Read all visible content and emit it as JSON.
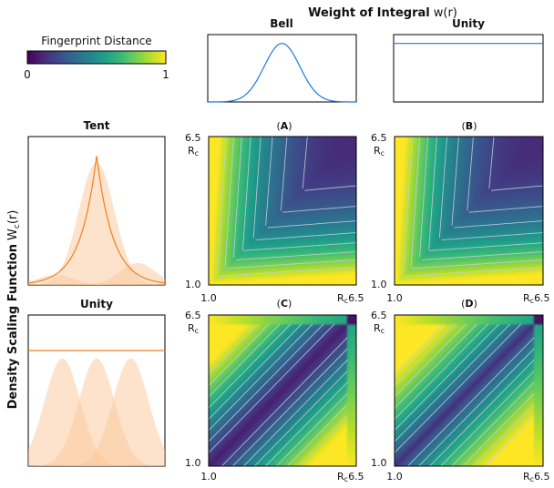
{
  "figure": {
    "top_title_bold": "Weight of Integral",
    "top_title_fn": "w(r)",
    "side_title_bold": "Density Scaling Function",
    "side_title_fn": "W",
    "side_title_sub": "c",
    "side_title_arg": "(r)"
  },
  "colorbar": {
    "title": "Fingerprint Distance",
    "min_label": "0",
    "max_label": "1",
    "colormap": "viridis",
    "stops": [
      "#440154",
      "#482878",
      "#3e4989",
      "#31688e",
      "#26828e",
      "#1f9e89",
      "#35b779",
      "#6ece58",
      "#b5de2b",
      "#fde725"
    ]
  },
  "colors": {
    "weight_line": "#1f77e0",
    "density_line": "#f07f1f",
    "density_fill": "#fcc79a",
    "contour": "#c8cfe0"
  },
  "chart_data": [
    {
      "type": "line",
      "title": "Bell",
      "role": "weight",
      "shape": "gaussian",
      "mean": 0.5,
      "sigma": 0.12,
      "ylim": [
        0,
        1.15
      ],
      "x": [
        0,
        0.1,
        0.2,
        0.3,
        0.4,
        0.5,
        0.6,
        0.7,
        0.8,
        0.9,
        1.0
      ],
      "y": [
        0.0,
        0.06,
        0.21,
        0.5,
        0.87,
        1.0,
        0.87,
        0.5,
        0.21,
        0.06,
        0.0
      ]
    },
    {
      "type": "line",
      "title": "Unity",
      "role": "weight",
      "shape": "constant",
      "value": 1.0,
      "ylim": [
        0,
        1.15
      ],
      "x": [
        0,
        1
      ],
      "y": [
        1,
        1
      ]
    },
    {
      "type": "area",
      "title": "Tent",
      "role": "density",
      "shape": "tent",
      "gaussians": [
        {
          "mean": 0.2,
          "sigma": 0.13,
          "amp": 0.08
        },
        {
          "mean": 0.5,
          "sigma": 0.13,
          "amp": 0.95
        },
        {
          "mean": 0.8,
          "sigma": 0.13,
          "amp": 0.17
        }
      ],
      "line_peak": 0.5,
      "line_height": 1.0,
      "line_decay": 0.12,
      "ylim": [
        0,
        1.15
      ]
    },
    {
      "type": "area",
      "title": "Unity",
      "role": "density",
      "shape": "constant",
      "gaussians": [
        {
          "mean": 0.25,
          "sigma": 0.13,
          "amp": 0.82
        },
        {
          "mean": 0.5,
          "sigma": 0.13,
          "amp": 0.82
        },
        {
          "mean": 0.75,
          "sigma": 0.13,
          "amp": 0.82
        }
      ],
      "line_value": 0.88,
      "ylim": [
        0,
        1.15
      ]
    },
    {
      "type": "heatmap",
      "label": "A",
      "xlim": [
        1.0,
        6.5
      ],
      "ylim": [
        1.0,
        6.5
      ],
      "variant": "smooth",
      "x_tick_min": "1.0",
      "x_tick_max": "6.5",
      "y_tick_min": "1.0",
      "y_tick_max": "6.5",
      "axis_symbol": "R",
      "axis_sub": "c"
    },
    {
      "type": "heatmap",
      "label": "B",
      "xlim": [
        1.0,
        6.5
      ],
      "ylim": [
        1.0,
        6.5
      ],
      "variant": "smooth",
      "x_tick_min": "1.0",
      "x_tick_max": "6.5",
      "y_tick_min": "1.0",
      "y_tick_max": "6.5",
      "axis_symbol": "R",
      "axis_sub": "c"
    },
    {
      "type": "heatmap",
      "label": "C",
      "xlim": [
        1.0,
        6.5
      ],
      "ylim": [
        1.0,
        6.5
      ],
      "variant": "stepped",
      "x_tick_min": "1.0",
      "x_tick_max": "6.5",
      "y_tick_min": "1.0",
      "y_tick_max": "6.5",
      "axis_symbol": "R",
      "axis_sub": "c"
    },
    {
      "type": "heatmap",
      "label": "D",
      "xlim": [
        1.0,
        6.5
      ],
      "ylim": [
        1.0,
        6.5
      ],
      "variant": "stepped",
      "x_tick_min": "1.0",
      "x_tick_max": "6.5",
      "y_tick_min": "1.0",
      "y_tick_max": "6.5",
      "axis_symbol": "R",
      "axis_sub": "c"
    }
  ]
}
